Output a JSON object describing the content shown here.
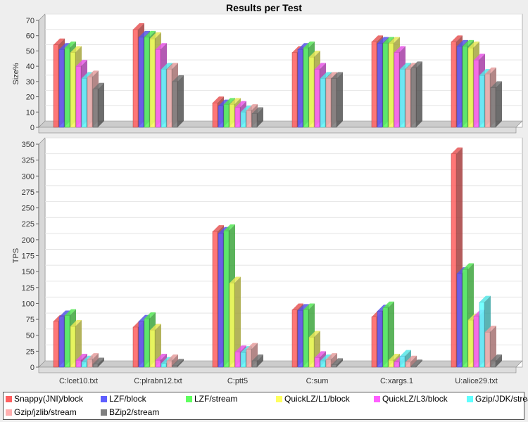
{
  "chart_data": {
    "type": "bar",
    "title": "Results per Test",
    "categories": [
      "C:lcet10.txt",
      "C:plrabn12.txt",
      "C:ptt5",
      "C:sum",
      "C:xargs.1",
      "U:alice29.txt"
    ],
    "series": [
      {
        "name": "Snappy(JNI)/block",
        "color": "#ff5f5f"
      },
      {
        "name": "LZF/block",
        "color": "#5f5fff"
      },
      {
        "name": "LZF/stream",
        "color": "#5fff5f"
      },
      {
        "name": "QuickLZ/L1/block",
        "color": "#ffff5f"
      },
      {
        "name": "QuickLZ/L3/block",
        "color": "#ff5fff"
      },
      {
        "name": "Gzip/JDK/stream",
        "color": "#5fffff"
      },
      {
        "name": "Gzip/jzlib/stream",
        "color": "#ffafaf"
      },
      {
        "name": "BZip2/stream",
        "color": "#808080"
      }
    ],
    "subplots": [
      {
        "ylabel": "Size%",
        "ylim": [
          0,
          70
        ],
        "yticks": [
          0,
          10,
          20,
          30,
          40,
          50,
          60,
          70
        ],
        "values": [
          [
            54,
            51,
            52,
            49,
            40,
            32,
            33,
            25
          ],
          [
            64,
            59,
            59,
            58,
            51,
            38,
            38,
            30
          ],
          [
            16,
            14,
            15,
            15,
            13,
            10,
            11,
            9
          ],
          [
            49,
            51,
            52,
            46,
            38,
            32,
            32,
            32
          ],
          [
            56,
            55,
            55,
            55,
            49,
            38,
            38,
            39
          ],
          [
            56,
            53,
            53,
            52,
            44,
            34,
            35,
            26
          ]
        ]
      },
      {
        "ylabel": "TPS",
        "ylim": [
          0,
          350
        ],
        "yticks": [
          0,
          25,
          50,
          75,
          100,
          125,
          150,
          175,
          200,
          225,
          250,
          275,
          300,
          325,
          350
        ],
        "values": [
          [
            72,
            79,
            81,
            64,
            11,
            8,
            12,
            5
          ],
          [
            63,
            72,
            76,
            58,
            11,
            6,
            10,
            3
          ],
          [
            213,
            210,
            214,
            132,
            24,
            23,
            28,
            10
          ],
          [
            90,
            89,
            90,
            47,
            15,
            10,
            12,
            4
          ],
          [
            79,
            88,
            93,
            11,
            8,
            17,
            8,
            2
          ],
          [
            335,
            147,
            153,
            74,
            80,
            102,
            55,
            10
          ]
        ]
      }
    ],
    "grid": true,
    "legend": "bottom"
  }
}
